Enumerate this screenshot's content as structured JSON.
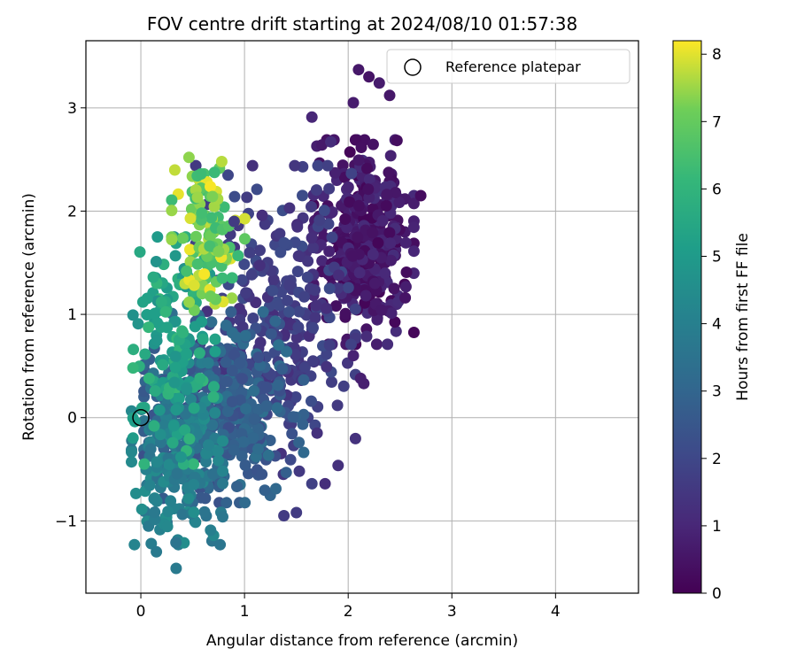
{
  "chart_data": {
    "type": "scatter",
    "title": "FOV centre drift starting at 2024/08/10 01:57:38",
    "xlabel": "Angular distance from reference (arcmin)",
    "ylabel": "Rotation from reference (arcmin)",
    "xlim": [
      -0.53,
      4.8
    ],
    "ylim": [
      -1.7,
      3.65
    ],
    "xticks": [
      0,
      1,
      2,
      3,
      4
    ],
    "yticks": [
      -1,
      0,
      1,
      2,
      3
    ],
    "grid": true,
    "legend": {
      "position": "top-right",
      "label": "Reference platepar"
    },
    "reference_point": {
      "x": 0,
      "y": 0
    },
    "colorbar": {
      "label": "Hours from first FF file",
      "min": 0,
      "max": 8.2,
      "ticks": [
        0,
        1,
        2,
        3,
        4,
        5,
        6,
        7,
        8
      ],
      "colormap": "viridis"
    },
    "clusters": [
      {
        "hours": [
          0.1,
          1.2
        ],
        "cx": 2.15,
        "cy": 1.7,
        "sx": 0.22,
        "sy": 0.45,
        "n": 380
      },
      {
        "hours": [
          1.2,
          2.2
        ],
        "cx": 1.3,
        "cy": 0.9,
        "sx": 0.35,
        "sy": 0.7,
        "n": 280
      },
      {
        "hours": [
          2.2,
          3.4
        ],
        "cx": 0.8,
        "cy": 0.1,
        "sx": 0.35,
        "sy": 0.42,
        "n": 380
      },
      {
        "hours": [
          3.4,
          4.6
        ],
        "cx": 0.35,
        "cy": -0.35,
        "sx": 0.2,
        "sy": 0.4,
        "n": 230
      },
      {
        "hours": [
          4.6,
          6.2
        ],
        "cx": 0.32,
        "cy": 0.65,
        "sx": 0.18,
        "sy": 0.5,
        "n": 140
      },
      {
        "hours": [
          6.2,
          8.2
        ],
        "cx": 0.65,
        "cy": 1.75,
        "sx": 0.16,
        "sy": 0.35,
        "n": 110
      }
    ],
    "outliers": [
      {
        "x": 2.1,
        "y": 3.37,
        "h": 0.6
      },
      {
        "x": 2.2,
        "y": 3.3,
        "h": 0.5
      },
      {
        "x": 2.3,
        "y": 3.24,
        "h": 0.7
      },
      {
        "x": 2.4,
        "y": 3.12,
        "h": 0.6
      },
      {
        "x": 2.05,
        "y": 3.05,
        "h": 0.7
      },
      {
        "x": 1.65,
        "y": 2.91,
        "h": 1.0
      },
      {
        "x": 2.7,
        "y": 2.15,
        "h": 0.3
      },
      {
        "x": 2.55,
        "y": 1.16,
        "h": 0.5
      },
      {
        "x": 2.15,
        "y": 0.33,
        "h": 0.8
      },
      {
        "x": 2.12,
        "y": 0.38,
        "h": 0.8
      },
      {
        "x": 2.05,
        "y": 0.6,
        "h": 0.9
      },
      {
        "x": 1.7,
        "y": -0.15,
        "h": 1.3
      },
      {
        "x": 1.38,
        "y": -0.95,
        "h": 1.6
      },
      {
        "x": 1.5,
        "y": -0.92,
        "h": 1.6
      },
      {
        "x": 0.1,
        "y": -1.22,
        "h": 3.9
      },
      {
        "x": 0.15,
        "y": -1.3,
        "h": 3.8
      },
      {
        "x": 0.34,
        "y": -1.46,
        "h": 3.8
      },
      {
        "x": 0.9,
        "y": 1.9,
        "h": 1.6
      },
      {
        "x": 0.78,
        "y": 2.48,
        "h": 7.7
      },
      {
        "x": 0.58,
        "y": 2.36,
        "h": 6.3
      },
      {
        "x": 0.12,
        "y": 1.36,
        "h": 5.6
      },
      {
        "x": 0.02,
        "y": 1.12,
        "h": 5.3
      },
      {
        "x": 0.57,
        "y": 0.38,
        "h": 5.8
      },
      {
        "x": 0.7,
        "y": 0.2,
        "h": 5.9
      }
    ]
  }
}
